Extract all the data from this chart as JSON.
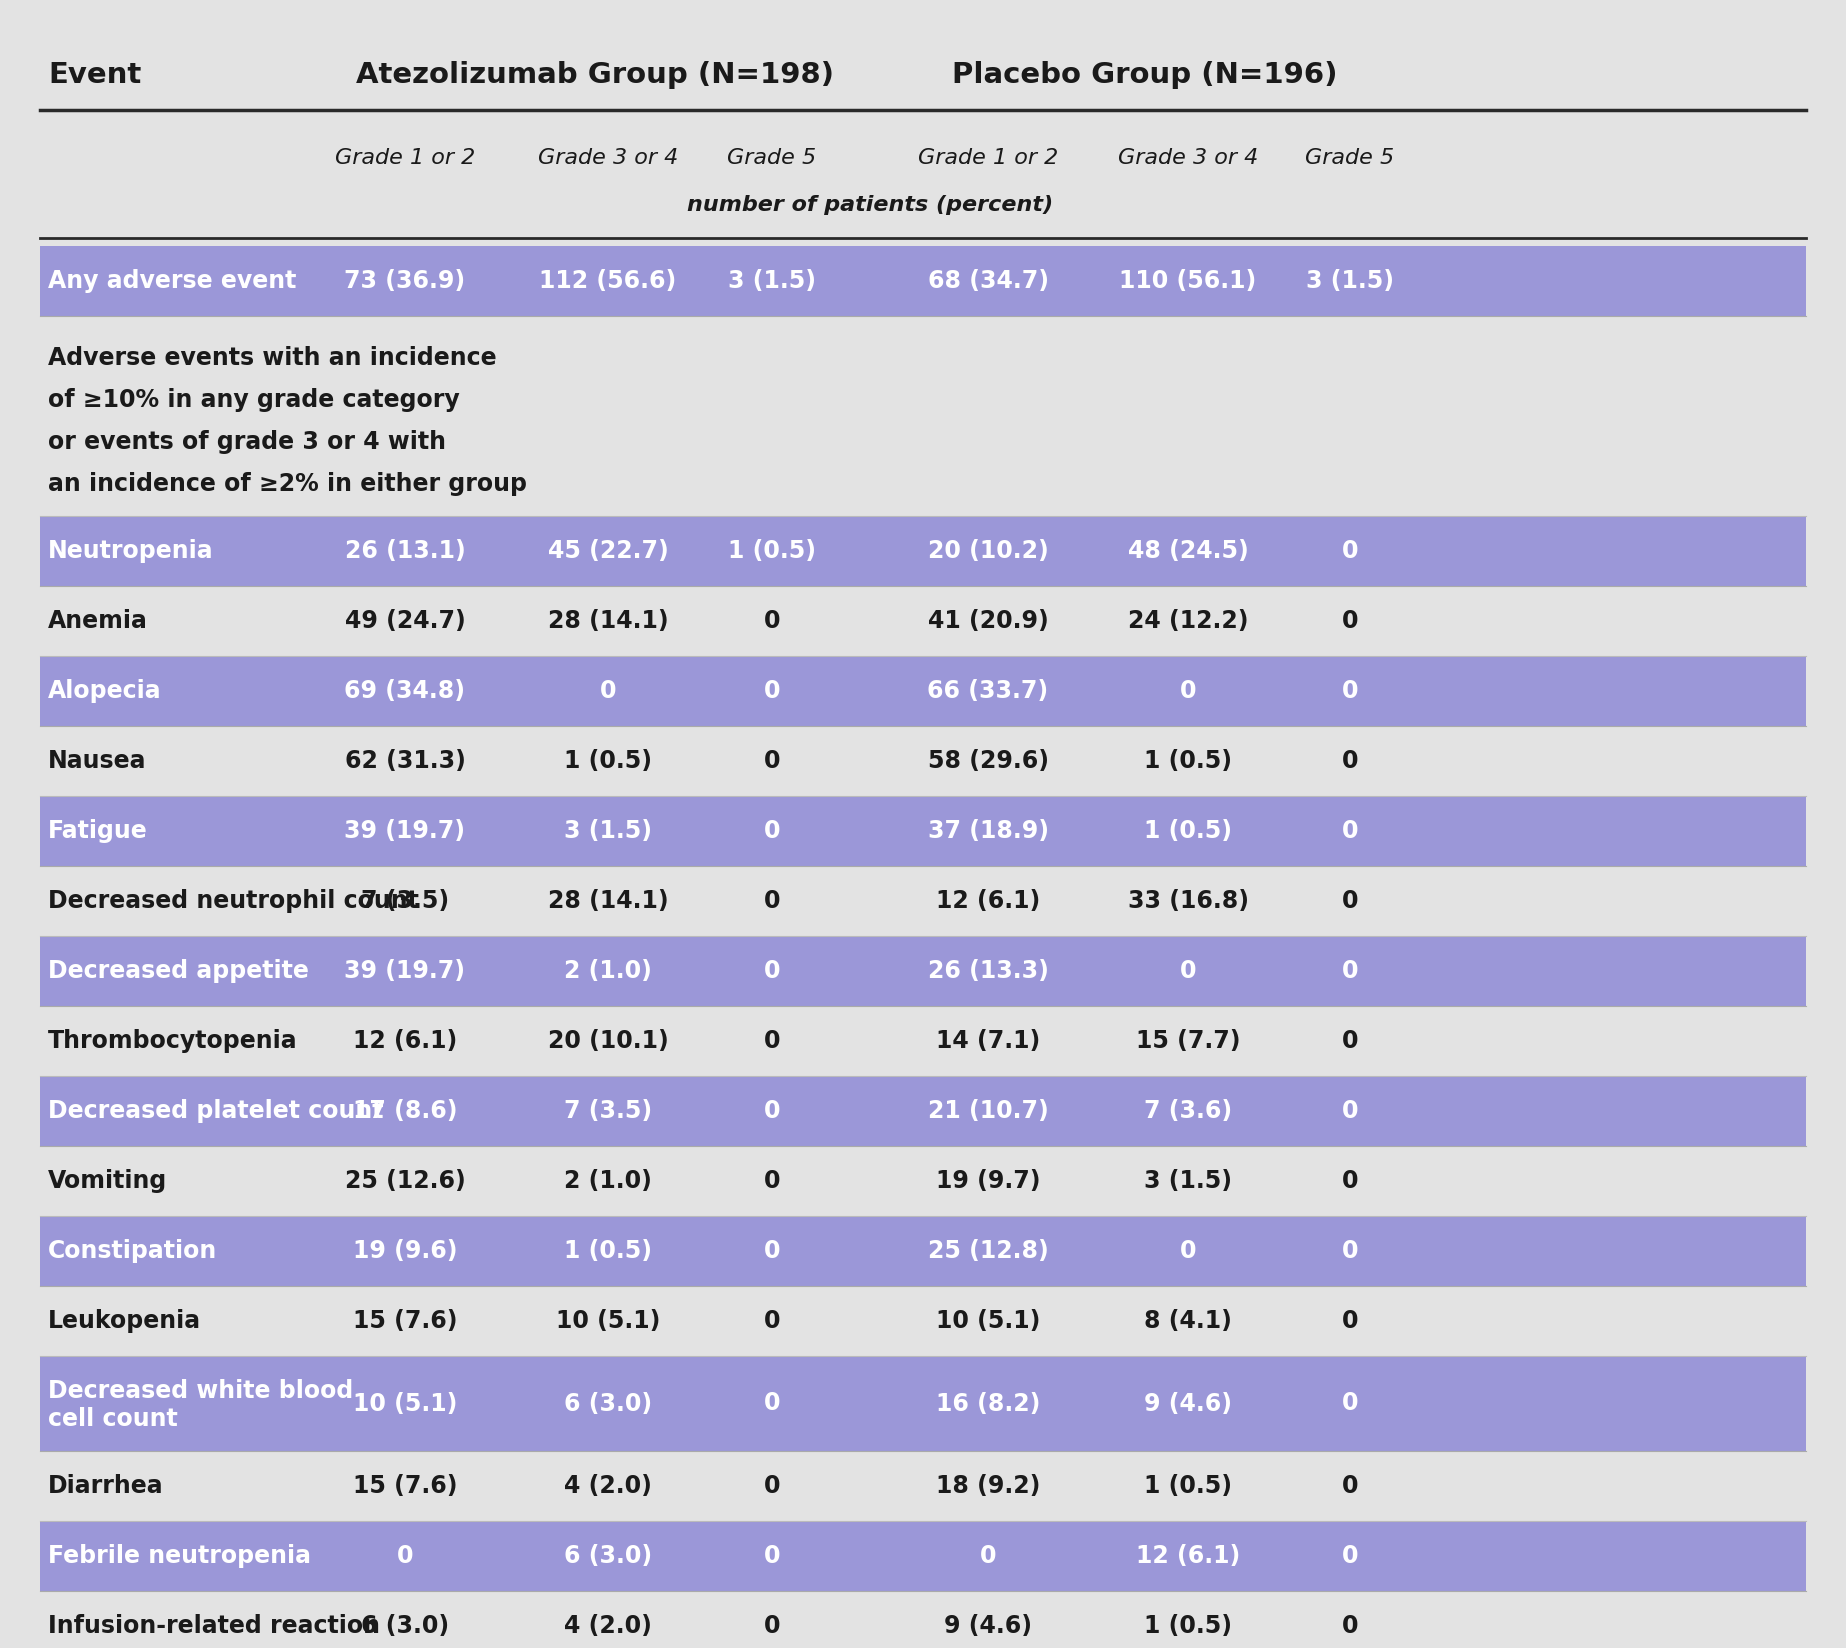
{
  "bg_color": "#e3e3e3",
  "purple_color": "#9b97d8",
  "white_text": "#ffffff",
  "dark_text": "#1a1a1a",
  "header_line_color": "#2a2a2a",
  "col_header1": "Event",
  "col_header2": "Atezolizumab Group (N=198)",
  "col_header3": "Placebo Group (N=196)",
  "subheaders": [
    "Grade 1 or 2",
    "Grade 3 or 4",
    "Grade 5",
    "Grade 1 or 2",
    "Grade 3 or 4",
    "Grade 5"
  ],
  "subheader_note": "number of patients (percent)",
  "rows": [
    {
      "event": "Any adverse event",
      "values": [
        "73 (36.9)",
        "112 (56.6)",
        "3 (1.5)",
        "68 (34.7)",
        "110 (56.1)",
        "3 (1.5)"
      ],
      "highlight": true,
      "multiline": false,
      "tall": false
    },
    {
      "event": "Adverse events with an incidence\nof ≥10% in any grade category\nor events of grade 3 or 4 with\nan incidence of ≥2% in either group",
      "values": [
        "",
        "",
        "",
        "",
        "",
        ""
      ],
      "highlight": false,
      "multiline": true,
      "tall": true
    },
    {
      "event": "Neutropenia",
      "values": [
        "26 (13.1)",
        "45 (22.7)",
        "1 (0.5)",
        "20 (10.2)",
        "48 (24.5)",
        "0"
      ],
      "highlight": true,
      "multiline": false,
      "tall": false
    },
    {
      "event": "Anemia",
      "values": [
        "49 (24.7)",
        "28 (14.1)",
        "0",
        "41 (20.9)",
        "24 (12.2)",
        "0"
      ],
      "highlight": false,
      "multiline": false,
      "tall": false
    },
    {
      "event": "Alopecia",
      "values": [
        "69 (34.8)",
        "0",
        "0",
        "66 (33.7)",
        "0",
        "0"
      ],
      "highlight": true,
      "multiline": false,
      "tall": false
    },
    {
      "event": "Nausea",
      "values": [
        "62 (31.3)",
        "1 (0.5)",
        "0",
        "58 (29.6)",
        "1 (0.5)",
        "0"
      ],
      "highlight": false,
      "multiline": false,
      "tall": false
    },
    {
      "event": "Fatigue",
      "values": [
        "39 (19.7)",
        "3 (1.5)",
        "0",
        "37 (18.9)",
        "1 (0.5)",
        "0"
      ],
      "highlight": true,
      "multiline": false,
      "tall": false
    },
    {
      "event": "Decreased neutrophil count",
      "values": [
        "7 (3.5)",
        "28 (14.1)",
        "0",
        "12 (6.1)",
        "33 (16.8)",
        "0"
      ],
      "highlight": false,
      "multiline": false,
      "tall": false
    },
    {
      "event": "Decreased appetite",
      "values": [
        "39 (19.7)",
        "2 (1.0)",
        "0",
        "26 (13.3)",
        "0",
        "0"
      ],
      "highlight": true,
      "multiline": false,
      "tall": false
    },
    {
      "event": "Thrombocytopenia",
      "values": [
        "12 (6.1)",
        "20 (10.1)",
        "0",
        "14 (7.1)",
        "15 (7.7)",
        "0"
      ],
      "highlight": false,
      "multiline": false,
      "tall": false
    },
    {
      "event": "Decreased platelet count",
      "values": [
        "17 (8.6)",
        "7 (3.5)",
        "0",
        "21 (10.7)",
        "7 (3.6)",
        "0"
      ],
      "highlight": true,
      "multiline": false,
      "tall": false
    },
    {
      "event": "Vomiting",
      "values": [
        "25 (12.6)",
        "2 (1.0)",
        "0",
        "19 (9.7)",
        "3 (1.5)",
        "0"
      ],
      "highlight": false,
      "multiline": false,
      "tall": false
    },
    {
      "event": "Constipation",
      "values": [
        "19 (9.6)",
        "1 (0.5)",
        "0",
        "25 (12.8)",
        "0",
        "0"
      ],
      "highlight": true,
      "multiline": false,
      "tall": false
    },
    {
      "event": "Leukopenia",
      "values": [
        "15 (7.6)",
        "10 (5.1)",
        "0",
        "10 (5.1)",
        "8 (4.1)",
        "0"
      ],
      "highlight": false,
      "multiline": false,
      "tall": false
    },
    {
      "event": "Decreased white blood\ncell count",
      "values": [
        "10 (5.1)",
        "6 (3.0)",
        "0",
        "16 (8.2)",
        "9 (4.6)",
        "0"
      ],
      "highlight": true,
      "multiline": true,
      "tall": false
    },
    {
      "event": "Diarrhea",
      "values": [
        "15 (7.6)",
        "4 (2.0)",
        "0",
        "18 (9.2)",
        "1 (0.5)",
        "0"
      ],
      "highlight": false,
      "multiline": false,
      "tall": false
    },
    {
      "event": "Febrile neutropenia",
      "values": [
        "0",
        "6 (3.0)",
        "0",
        "0",
        "12 (6.1)",
        "0"
      ],
      "highlight": true,
      "multiline": false,
      "tall": false
    },
    {
      "event": "Infusion-related reaction",
      "values": [
        "6 (3.0)",
        "4 (2.0)",
        "0",
        "9 (4.6)",
        "1 (0.5)",
        "0"
      ],
      "highlight": false,
      "multiline": false,
      "tall": false
    }
  ]
}
